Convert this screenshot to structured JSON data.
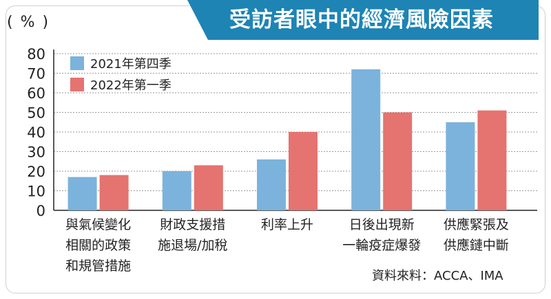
{
  "title": "受訪者眼中的經濟風險因素",
  "unit": "( % )",
  "source": "資料來料：ACCA、IMA",
  "colors": {
    "banner": "#1e84b4",
    "series1": "#7bb3dc",
    "series2": "#e57370",
    "grid": "#9a9a9a"
  },
  "chart_data": {
    "type": "bar",
    "title": "受訪者眼中的經濟風險因素",
    "ylabel": "( % )",
    "ylim": [
      0,
      80
    ],
    "yticks": [
      0,
      10,
      20,
      30,
      40,
      50,
      60,
      70,
      80
    ],
    "grid": true,
    "legend": "top-left",
    "categories": [
      [
        "與氣候變化",
        "相關的政策",
        "和規管措施"
      ],
      [
        "財政支援措",
        "施退場/加稅"
      ],
      [
        "利率上升"
      ],
      [
        "日後出現新",
        "一輪疫症爆發"
      ],
      [
        "供應緊張及",
        "供應鏈中斷"
      ]
    ],
    "series": [
      {
        "name": "2021年第四季",
        "values": [
          17,
          20,
          26,
          72,
          45
        ]
      },
      {
        "name": "2022年第一季",
        "values": [
          18,
          23,
          40,
          50,
          51
        ]
      }
    ]
  }
}
